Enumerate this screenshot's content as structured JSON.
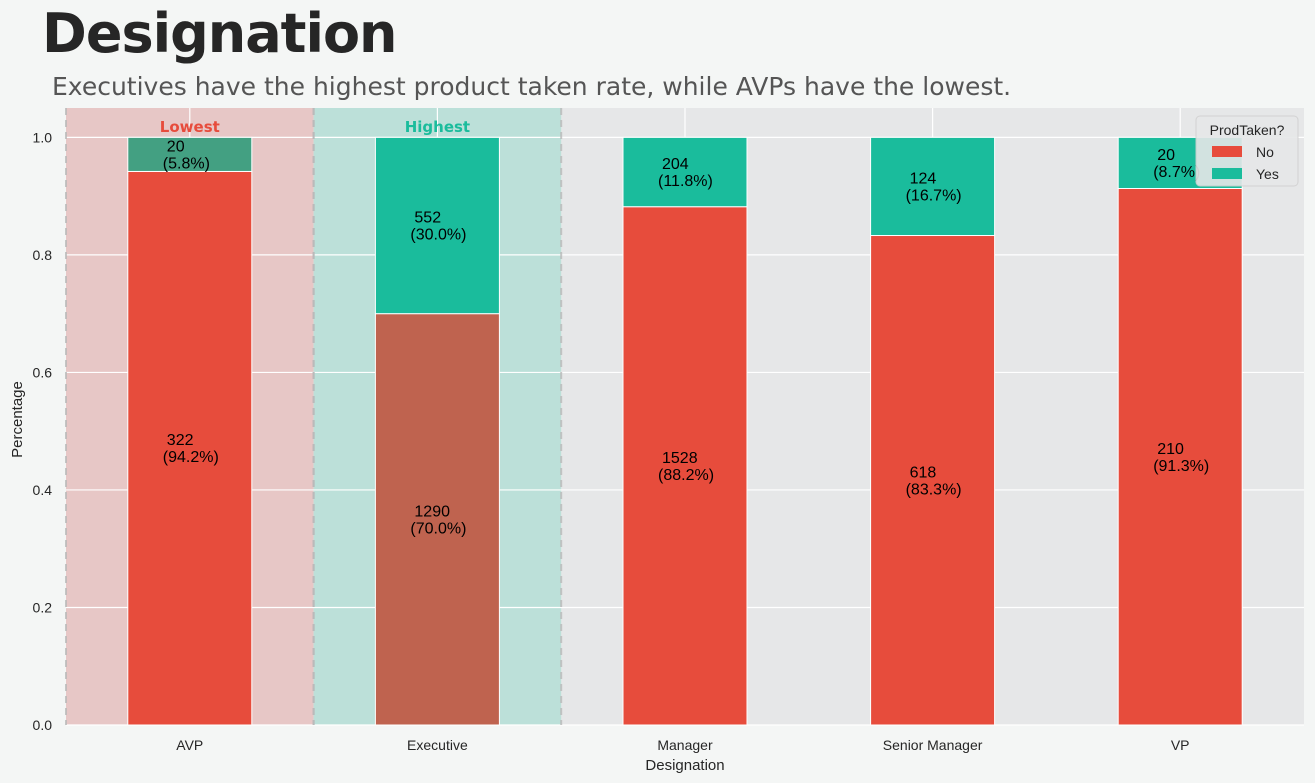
{
  "header": {
    "title": "Designation",
    "subtitle": "Executives have the highest product taken rate, while AVPs have the lowest."
  },
  "colors": {
    "no": "#e74c3c",
    "yes": "#1abc9c",
    "plot_bg": "#e6e7e8",
    "page_bg": "#f4f6f5",
    "lowest_band": "#e7c7c6",
    "highest_band": "#bce0d9",
    "lowest_text": "#e74c3c",
    "highest_text": "#1abc9c",
    "executive_no_bar": "#bf634f",
    "avp_yes_bar": "#43a082"
  },
  "chart_data": {
    "type": "bar",
    "stacked": true,
    "categories": [
      "AVP",
      "Executive",
      "Manager",
      "Senior Manager",
      "VP"
    ],
    "series": [
      {
        "name": "No",
        "values": [
          0.942,
          0.7,
          0.882,
          0.833,
          0.913
        ],
        "counts": [
          322,
          1290,
          1528,
          618,
          210
        ],
        "labels": [
          "(94.2%)",
          "(70.0%)",
          "(88.2%)",
          "(83.3%)",
          "(91.3%)"
        ]
      },
      {
        "name": "Yes",
        "values": [
          0.058,
          0.3,
          0.118,
          0.167,
          0.087
        ],
        "counts": [
          20,
          552,
          204,
          124,
          20
        ],
        "labels": [
          "(5.8%)",
          "(30.0%)",
          "(11.8%)",
          "(16.7%)",
          "(8.7%)"
        ]
      }
    ],
    "xlabel": "Designation",
    "ylabel": "Percentage",
    "ylim": [
      0,
      1.05
    ],
    "yticks": [
      "0.0",
      "0.2",
      "0.4",
      "0.6",
      "0.8",
      "1.0"
    ],
    "grid": true,
    "legend": {
      "title": "ProdTaken?",
      "placement": "top-right",
      "entries": [
        "No",
        "Yes"
      ]
    },
    "highlights": [
      {
        "category": "AVP",
        "text": "Lowest"
      },
      {
        "category": "Executive",
        "text": "Highest"
      }
    ]
  }
}
